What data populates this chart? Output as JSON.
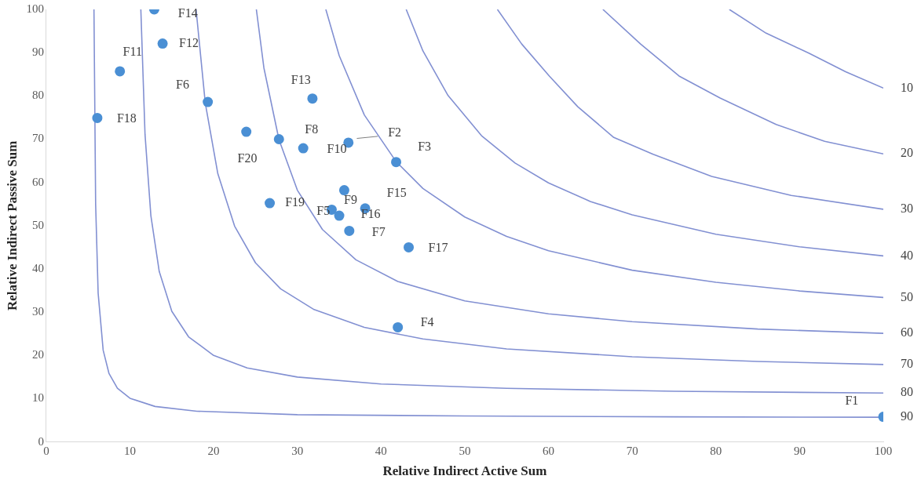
{
  "chart_data": {
    "type": "scatter",
    "xlabel": "Relative Indirect Active Sum",
    "ylabel": "Relative Indirect Passive Sum",
    "xlim": [
      0,
      100
    ],
    "ylim": [
      0,
      100
    ],
    "xticks": [
      0,
      10,
      20,
      30,
      40,
      50,
      60,
      70,
      80,
      90,
      100
    ],
    "yticks": [
      0,
      10,
      20,
      30,
      40,
      50,
      60,
      70,
      80,
      90,
      100
    ],
    "grid": false,
    "legend": false,
    "marker": "circle",
    "series": [
      {
        "color": "#4a8fd4",
        "value_labels": [
          "F1",
          "F2",
          "F3",
          "F4",
          "F5",
          "F6",
          "F7",
          "F8",
          "F9",
          "F10",
          "F11",
          "F12",
          "F13",
          "F14",
          "F15",
          "F16",
          "F17",
          "F18",
          "F19",
          "F20"
        ],
        "x": [
          100,
          36.1,
          41.8,
          42.0,
          34.1,
          19.3,
          36.2,
          27.8,
          35.6,
          30.7,
          8.8,
          13.9,
          31.8,
          12.9,
          38.1,
          35.0,
          43.3,
          6.1,
          26.7,
          23.9
        ],
        "values": [
          5.8,
          69.2,
          64.7,
          26.5,
          53.7,
          78.6,
          48.8,
          70.0,
          58.2,
          67.9,
          85.7,
          92.1,
          79.4,
          100,
          54.0,
          52.3,
          45.0,
          74.9,
          55.2,
          71.7
        ]
      },
      {
        "type": "line",
        "name": "10",
        "color": "#8290d2",
        "marker": "none",
        "x": [
          81.6,
          86,
          91.1,
          95.5,
          100
        ],
        "values": [
          100,
          94.5,
          89.9,
          85.6,
          81.8
        ]
      },
      {
        "type": "line",
        "name": "20",
        "color": "#8290d2",
        "marker": "none",
        "x": [
          66.5,
          71,
          75.6,
          80.5,
          87.2,
          93,
          100
        ],
        "values": [
          100,
          92,
          84.6,
          79.5,
          73.4,
          69.5,
          66.6
        ]
      },
      {
        "type": "line",
        "name": "30",
        "color": "#8290d2",
        "marker": "none",
        "x": [
          53.9,
          56.8,
          60.1,
          63.5,
          67.8,
          72.5,
          79.5,
          89,
          100
        ],
        "values": [
          100,
          92,
          84.6,
          77.5,
          70.4,
          66.5,
          61.4,
          57,
          53.8
        ]
      },
      {
        "type": "line",
        "name": "40",
        "color": "#8290d2",
        "marker": "none",
        "x": [
          43,
          45,
          48,
          52,
          56,
          60,
          65,
          70,
          80,
          90,
          100
        ],
        "values": [
          100,
          90.4,
          80.1,
          70.8,
          64.5,
          59.9,
          55.6,
          52.5,
          48.0,
          45.1,
          43.0
        ]
      },
      {
        "type": "line",
        "name": "50",
        "color": "#8290d2",
        "marker": "none",
        "x": [
          33.4,
          35,
          38,
          41.8,
          45,
          50,
          55,
          60,
          70,
          80,
          90,
          100
        ],
        "values": [
          100,
          89.3,
          75.6,
          64.8,
          58.6,
          52.0,
          47.5,
          44.2,
          39.7,
          36.9,
          34.9,
          33.4
        ]
      },
      {
        "type": "line",
        "name": "60",
        "color": "#8290d2",
        "marker": "none",
        "x": [
          25.1,
          26,
          27.8,
          30,
          33,
          37,
          42,
          50,
          60,
          70,
          85,
          100
        ],
        "values": [
          100,
          86.5,
          69.9,
          58.2,
          49.1,
          42.1,
          37.1,
          32.6,
          29.6,
          27.8,
          26.1,
          25.1
        ]
      },
      {
        "type": "line",
        "name": "70",
        "color": "#8290d2",
        "marker": "none",
        "x": [
          17.9,
          19,
          20.5,
          22.5,
          25,
          28,
          32,
          38,
          45,
          55,
          70,
          85,
          100
        ],
        "values": [
          100,
          78.3,
          62.0,
          49.9,
          41.4,
          35.4,
          30.6,
          26.5,
          23.8,
          21.5,
          19.7,
          18.6,
          17.9
        ]
      },
      {
        "type": "line",
        "name": "80",
        "color": "#8290d2",
        "marker": "none",
        "x": [
          11.3,
          11.8,
          12.5,
          13.5,
          15,
          17,
          20,
          24,
          30,
          40,
          55,
          75,
          100
        ],
        "values": [
          100,
          71.1,
          52.3,
          39.4,
          30.2,
          24.3,
          20.0,
          17.1,
          15.0,
          13.4,
          12.4,
          11.7,
          11.3
        ]
      },
      {
        "type": "line",
        "name": "90",
        "color": "#8290d2",
        "marker": "none",
        "x": [
          5.7,
          5.9,
          6.2,
          6.8,
          7.5,
          8.5,
          10,
          13,
          18,
          30,
          50,
          75,
          100
        ],
        "values": [
          100,
          55.0,
          34.4,
          21.2,
          15.8,
          12.4,
          10.1,
          8.2,
          7.1,
          6.3,
          6.0,
          5.8,
          5.7
        ]
      }
    ]
  }
}
